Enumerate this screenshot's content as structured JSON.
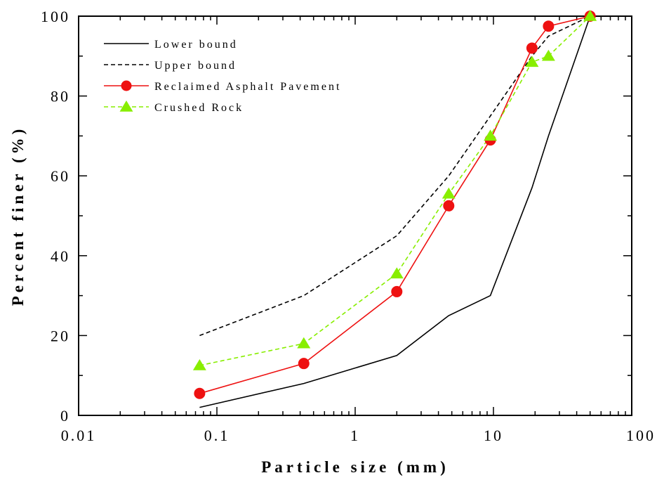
{
  "chart_data": {
    "type": "line",
    "xscale": "log",
    "xlim": [
      0.01,
      100
    ],
    "ylim": [
      0,
      100
    ],
    "xlabel": "Particle size (mm)",
    "ylabel": "Percent finer (%)",
    "x_tick_labels": [
      "0.01",
      "0.1",
      "1",
      "10",
      "100"
    ],
    "y_tick_labels": [
      "0",
      "20",
      "40",
      "60",
      "80",
      "100"
    ],
    "x_ticks": [
      0.01,
      0.1,
      1,
      10,
      100
    ],
    "y_ticks": [
      0,
      20,
      40,
      60,
      80,
      100
    ],
    "legend_position": "top-left",
    "series": [
      {
        "name": "Lower bound",
        "style": "solid",
        "marker": "none",
        "color": "#000000",
        "x": [
          0.075,
          0.425,
          2,
          4.75,
          9.5,
          19,
          25,
          50
        ],
        "y": [
          2,
          8,
          15,
          25,
          30,
          57,
          70,
          100
        ]
      },
      {
        "name": "Upper bound",
        "style": "dashed",
        "marker": "none",
        "color": "#000000",
        "x": [
          0.075,
          0.425,
          2,
          4.75,
          9.5,
          19,
          25,
          50
        ],
        "y": [
          20,
          30,
          45,
          60,
          75,
          90,
          95,
          100
        ]
      },
      {
        "name": "Reclaimed Asphalt Pavement",
        "style": "solid",
        "marker": "circle",
        "color": "#ee1111",
        "x": [
          0.075,
          0.425,
          2,
          4.75,
          9.5,
          19,
          25,
          50
        ],
        "y": [
          5.5,
          13,
          31,
          52.5,
          69,
          92,
          97.5,
          100
        ]
      },
      {
        "name": "Crushed Rock",
        "style": "dashed",
        "marker": "triangle",
        "color": "#88ee00",
        "x": [
          0.075,
          0.425,
          2,
          4.75,
          9.5,
          19,
          25,
          50
        ],
        "y": [
          12.5,
          18,
          35.5,
          55.5,
          70,
          88.5,
          90,
          100
        ]
      }
    ]
  }
}
